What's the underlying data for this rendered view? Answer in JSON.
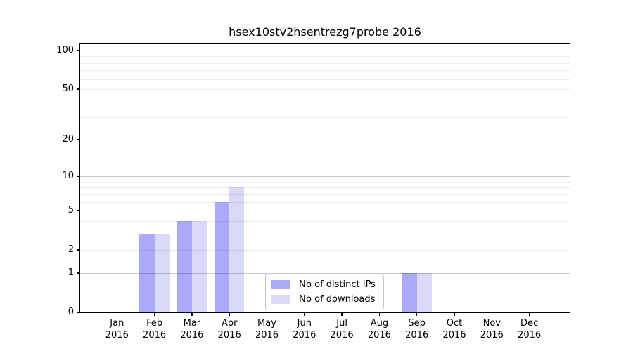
{
  "chart_data": {
    "type": "bar",
    "title": "hsex10stv2hsentrezg7probe 2016",
    "categories": [
      "Jan",
      "Feb",
      "Mar",
      "Apr",
      "May",
      "Jun",
      "Jul",
      "Aug",
      "Sep",
      "Oct",
      "Nov",
      "Dec"
    ],
    "year_label": "2016",
    "series": [
      {
        "name": "Nb of distinct IPs",
        "color": "#aaaaf9",
        "values": [
          0,
          3,
          4,
          6,
          0,
          0,
          0,
          0,
          1,
          0,
          0,
          0
        ]
      },
      {
        "name": "Nb of downloads",
        "color": "#d9d9fa",
        "values": [
          0,
          3,
          4,
          8,
          0,
          0,
          0,
          0,
          1,
          0,
          0,
          0
        ]
      }
    ],
    "xlabel": "",
    "ylabel": "",
    "yscale": "log1p",
    "ylim": [
      0,
      113
    ],
    "yticks": [
      0,
      1,
      2,
      5,
      10,
      20,
      50,
      100
    ],
    "grid": "on",
    "grid_major_ticks": [
      1,
      10,
      100
    ],
    "grid_minor_ticks": [
      2,
      3,
      4,
      5,
      6,
      7,
      8,
      9,
      20,
      30,
      40,
      50,
      60,
      70,
      80,
      90
    ],
    "legend_position": "inside plot, lower center-left"
  },
  "colors": {
    "background": "#ffffff",
    "spine": "#000000",
    "grid_major": "#c9c9c9",
    "grid_minor": "#ececec",
    "legend_border": "#c4c4c4"
  }
}
